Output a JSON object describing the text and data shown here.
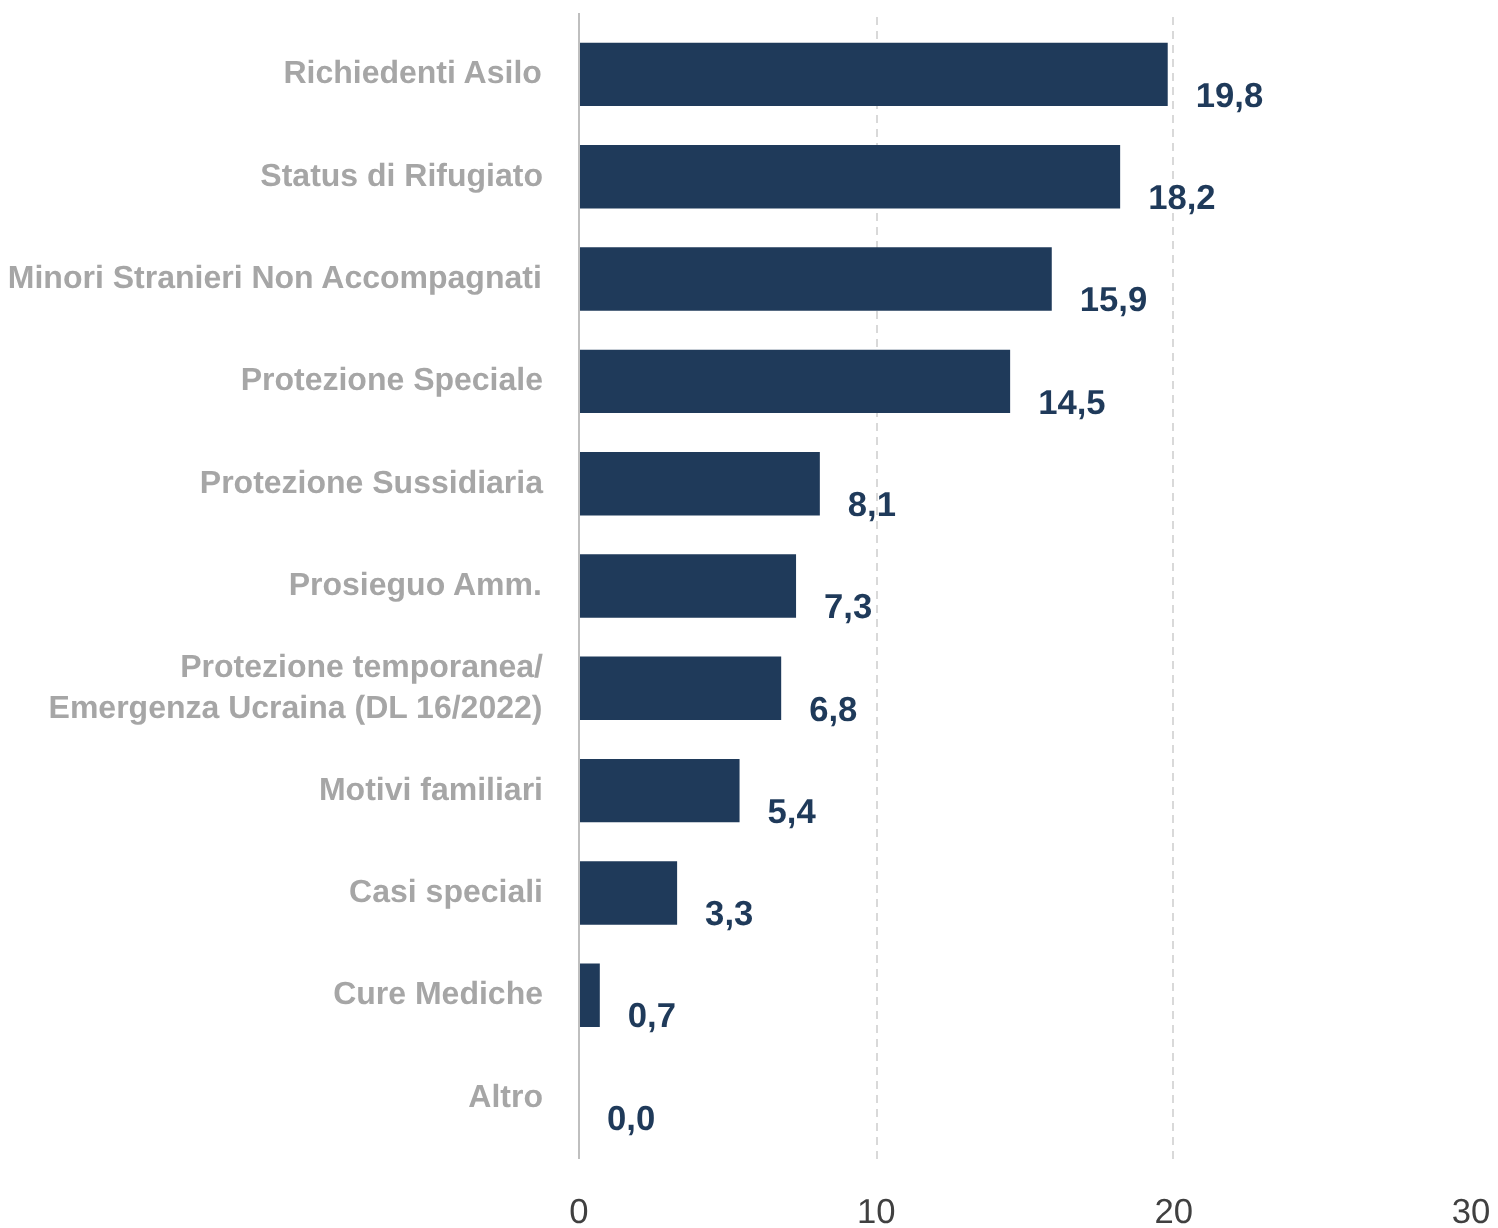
{
  "chart_data": {
    "type": "bar",
    "orientation": "horizontal",
    "categories": [
      "Richiedenti Asilo",
      "Status di Rifugiato",
      "Minori Stranieri Non Accompagnati",
      "Protezione Speciale",
      "Protezione Sussidiaria",
      "Prosieguo Amm.",
      "Protezione temporanea/\nEmergenza Ucraina (DL 16/2022)",
      "Motivi familiari",
      "Casi speciali",
      "Cure Mediche",
      "Altro"
    ],
    "values": [
      19.8,
      18.2,
      15.9,
      14.5,
      8.1,
      7.3,
      6.8,
      5.4,
      3.3,
      0.7,
      0.0
    ],
    "value_labels": [
      "19,8",
      "18,2",
      "15,9",
      "14,5",
      "8,1",
      "7,3",
      "6,8",
      "5,4",
      "3,3",
      "0,7",
      "0,0"
    ],
    "color": "#1f3a5a",
    "xlim": [
      0,
      30
    ],
    "xticks": [
      0,
      10,
      20,
      30
    ],
    "grid": "x"
  }
}
